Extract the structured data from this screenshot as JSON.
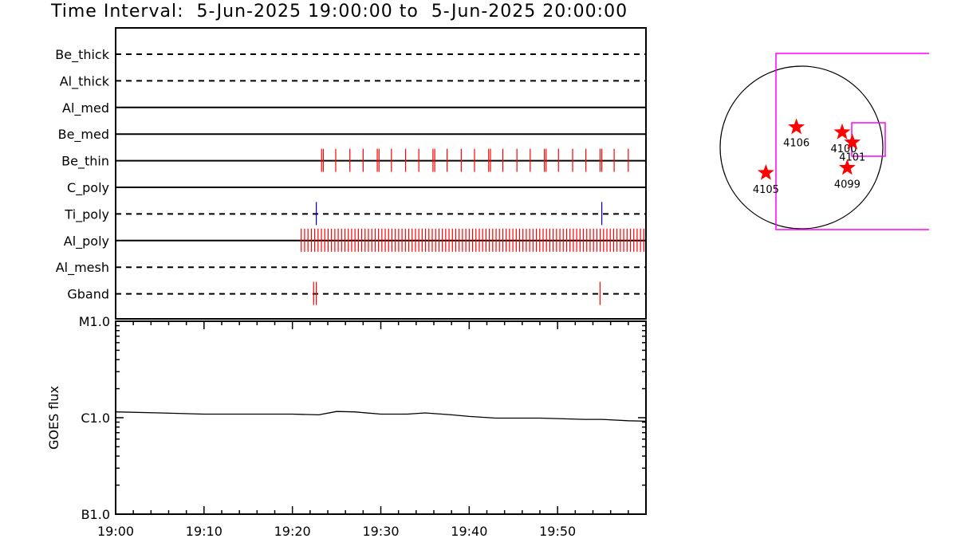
{
  "header": {
    "title": "Time Interval:  5-Jun-2025 19:00:00 to  5-Jun-2025 20:00:00"
  },
  "colors": {
    "event_red": "#ff0000",
    "event_blue": "#0000cc",
    "fov_magenta": "#ff00ff",
    "line": "#000000"
  },
  "chart_data": [
    {
      "type": "timeline",
      "x_range_minutes": [
        0,
        60
      ],
      "rows": [
        {
          "name": "Be_thick",
          "style": "dashed",
          "events": [],
          "event_color": "red"
        },
        {
          "name": "Al_thick",
          "style": "dashed",
          "events": [],
          "event_color": "red"
        },
        {
          "name": "Al_med",
          "style": "solid",
          "events": [],
          "event_color": "red"
        },
        {
          "name": "Be_med",
          "style": "solid",
          "events": [],
          "event_color": "red"
        },
        {
          "name": "Be_thin",
          "style": "solid",
          "event_color": "red",
          "events": [
            23.3,
            23.5,
            24.9,
            26.5,
            28.0,
            29.6,
            29.8,
            31.2,
            32.8,
            34.3,
            35.9,
            36.1,
            37.5,
            39.1,
            40.6,
            42.2,
            42.4,
            43.8,
            45.4,
            46.9,
            48.5,
            48.7,
            50.1,
            51.7,
            53.2,
            54.8,
            55.0,
            56.4,
            58.0
          ]
        },
        {
          "name": "C_poly",
          "style": "solid",
          "events": [],
          "event_color": "red"
        },
        {
          "name": "Ti_poly",
          "style": "dashed",
          "events": [
            22.7,
            55.0
          ],
          "event_color": "blue"
        },
        {
          "name": "Al_poly",
          "style": "solid",
          "event_color": "red",
          "dense_range": [
            21.0,
            60.0
          ],
          "dense_step": 0.38
        },
        {
          "name": "Al_mesh",
          "style": "dashed",
          "events": [],
          "event_color": "red"
        },
        {
          "name": "Gband",
          "style": "dashed",
          "events": [
            22.4,
            22.7,
            54.8
          ],
          "event_color": "red"
        }
      ]
    },
    {
      "type": "line",
      "ylabel": "GOES flux",
      "y_scale": "log",
      "ylim": [
        1e-07,
        1e-05
      ],
      "y_tick_labels": [
        {
          "label": "M1.0",
          "value": 1e-05
        },
        {
          "label": "C1.0",
          "value": 1e-06
        },
        {
          "label": "B1.0",
          "value": 1e-07
        }
      ],
      "x_tick_labels": [
        {
          "label": "19:00",
          "minute": 0
        },
        {
          "label": "19:10",
          "minute": 10
        },
        {
          "label": "19:20",
          "minute": 20
        },
        {
          "label": "19:30",
          "minute": 30
        },
        {
          "label": "19:40",
          "minute": 40
        },
        {
          "label": "19:50",
          "minute": 50
        }
      ],
      "x_minutes": [
        0,
        5,
        10,
        15,
        20,
        23,
        25,
        27,
        30,
        33,
        35,
        38,
        40,
        43,
        45,
        48,
        50,
        53,
        55,
        58,
        60
      ],
      "y": [
        1.15e-06,
        1.12e-06,
        1.09e-06,
        1.09e-06,
        1.09e-06,
        1.07e-06,
        1.16e-06,
        1.15e-06,
        1.09e-06,
        1.09e-06,
        1.12e-06,
        1.07e-06,
        1.03e-06,
        9.9e-07,
        9.9e-07,
        9.9e-07,
        9.8e-07,
        9.6e-07,
        9.6e-07,
        9.3e-07,
        9.2e-07
      ]
    },
    {
      "type": "scatter",
      "name": "active-region-map",
      "points": [
        {
          "label": "4106",
          "x": -1,
          "y": 4
        },
        {
          "label": "4105",
          "x": -7,
          "y": -5
        },
        {
          "label": "4100",
          "x": 8,
          "y": 3
        },
        {
          "label": "4101",
          "x": 10,
          "y": 1
        },
        {
          "label": "4099",
          "x": 9,
          "y": -4
        }
      ]
    }
  ]
}
